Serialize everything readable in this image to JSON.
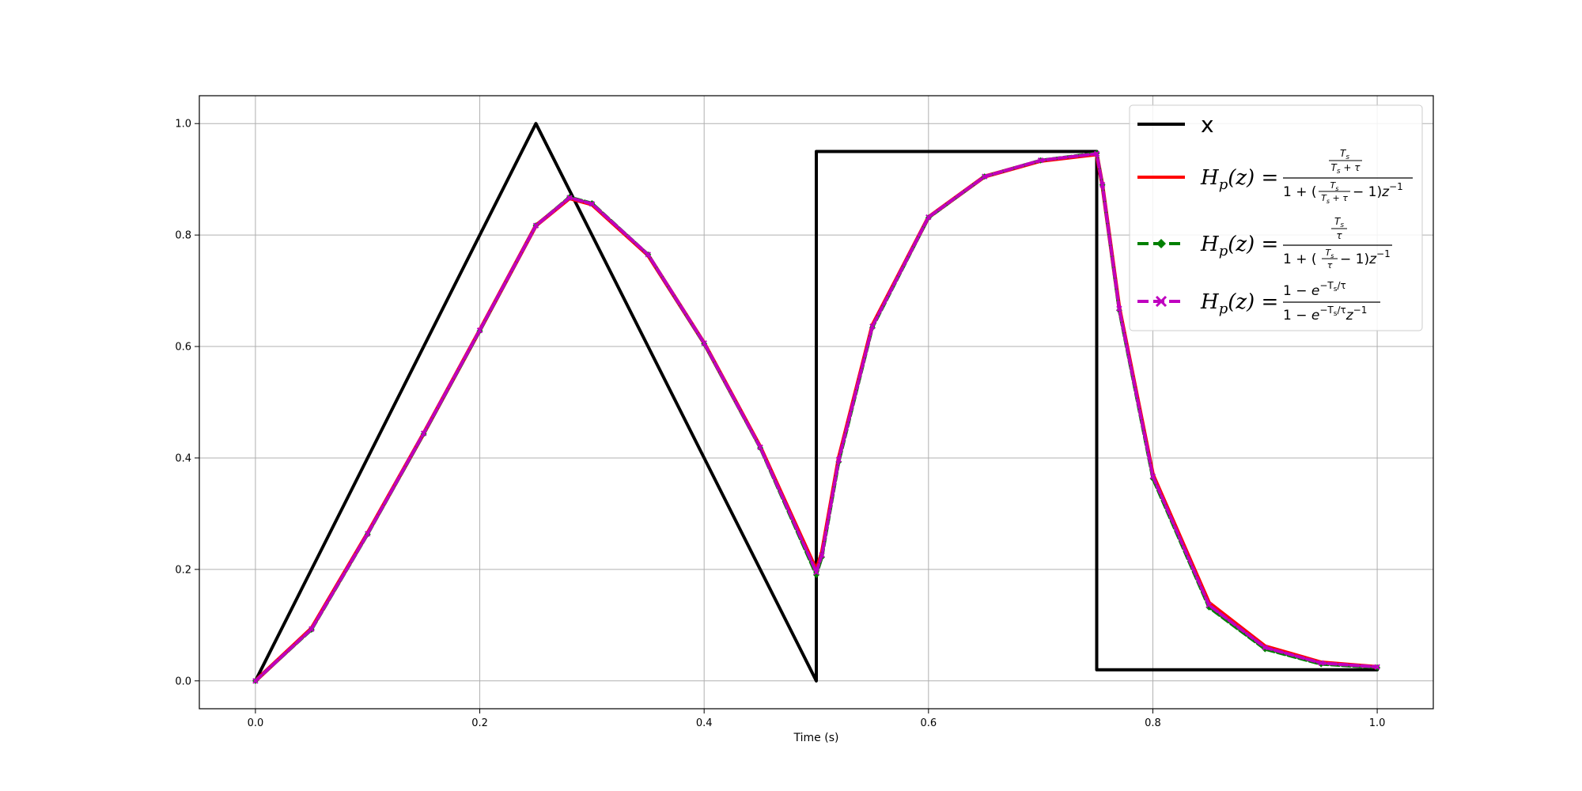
{
  "chart_data": {
    "type": "line",
    "title": "",
    "xlabel": "Time (s)",
    "ylabel": "",
    "xlim": [
      -0.05,
      1.05
    ],
    "ylim": [
      -0.05,
      1.05
    ],
    "xticks": [
      0.0,
      0.2,
      0.4,
      0.6,
      0.8,
      1.0
    ],
    "xtick_labels": [
      "0.0",
      "0.2",
      "0.4",
      "0.6",
      "0.8",
      "1.0"
    ],
    "yticks": [
      0.0,
      0.2,
      0.4,
      0.6,
      0.8,
      1.0
    ],
    "ytick_labels": [
      "0.0",
      "0.2",
      "0.4",
      "0.6",
      "0.8",
      "1.0"
    ],
    "grid": true,
    "legend_position": "top-right",
    "series": [
      {
        "name": "x",
        "color": "#000000",
        "style": "solid",
        "x": [
          0.0,
          0.25,
          0.5,
          0.5,
          0.75,
          0.75,
          1.0
        ],
        "y": [
          0.0,
          1.0,
          0.0,
          0.95,
          0.95,
          0.02,
          0.02
        ]
      },
      {
        "name": "Hp(z) = (Ts/(Ts+τ)) / (1 + (Ts/(Ts+τ) − 1) z⁻¹)",
        "color": "#ff0000",
        "style": "solid",
        "x": [
          0.0,
          0.05,
          0.1,
          0.15,
          0.2,
          0.25,
          0.28,
          0.3,
          0.35,
          0.4,
          0.45,
          0.5,
          0.505,
          0.52,
          0.55,
          0.6,
          0.65,
          0.7,
          0.75,
          0.755,
          0.77,
          0.8,
          0.85,
          0.9,
          0.95,
          1.0
        ],
        "y": [
          0.0,
          0.094,
          0.265,
          0.444,
          0.629,
          0.817,
          0.866,
          0.855,
          0.764,
          0.606,
          0.42,
          0.199,
          0.23,
          0.4,
          0.638,
          0.832,
          0.905,
          0.933,
          0.945,
          0.89,
          0.67,
          0.37,
          0.14,
          0.062,
          0.033,
          0.025
        ]
      },
      {
        "name": "Hp(z) = (Ts/τ) / (1 + (Ts/τ − 1) z⁻¹)",
        "color": "#008000",
        "style": "dashed-markers",
        "x": [
          0.0,
          0.05,
          0.1,
          0.15,
          0.2,
          0.25,
          0.28,
          0.3,
          0.35,
          0.4,
          0.45,
          0.5,
          0.505,
          0.52,
          0.55,
          0.6,
          0.65,
          0.7,
          0.75,
          0.755,
          0.77,
          0.8,
          0.85,
          0.9,
          0.95,
          1.0
        ],
        "y": [
          0.0,
          0.092,
          0.263,
          0.443,
          0.628,
          0.817,
          0.868,
          0.857,
          0.765,
          0.605,
          0.418,
          0.19,
          0.222,
          0.393,
          0.634,
          0.831,
          0.905,
          0.934,
          0.947,
          0.89,
          0.665,
          0.363,
          0.132,
          0.057,
          0.03,
          0.024
        ]
      },
      {
        "name": "Hp(z) = (1 − e^(−Ts/τ)) / (1 − e^(−Ts/τ) z⁻¹)",
        "color": "#bf00bf",
        "style": "dashed-markers",
        "x": [
          0.0,
          0.05,
          0.1,
          0.15,
          0.2,
          0.25,
          0.28,
          0.3,
          0.35,
          0.4,
          0.45,
          0.5,
          0.505,
          0.52,
          0.55,
          0.6,
          0.65,
          0.7,
          0.75,
          0.755,
          0.77,
          0.8,
          0.85,
          0.9,
          0.95,
          1.0
        ],
        "y": [
          0.0,
          0.093,
          0.264,
          0.444,
          0.629,
          0.817,
          0.867,
          0.856,
          0.765,
          0.606,
          0.419,
          0.195,
          0.226,
          0.397,
          0.636,
          0.832,
          0.905,
          0.934,
          0.946,
          0.89,
          0.668,
          0.367,
          0.136,
          0.06,
          0.032,
          0.025
        ]
      }
    ]
  }
}
